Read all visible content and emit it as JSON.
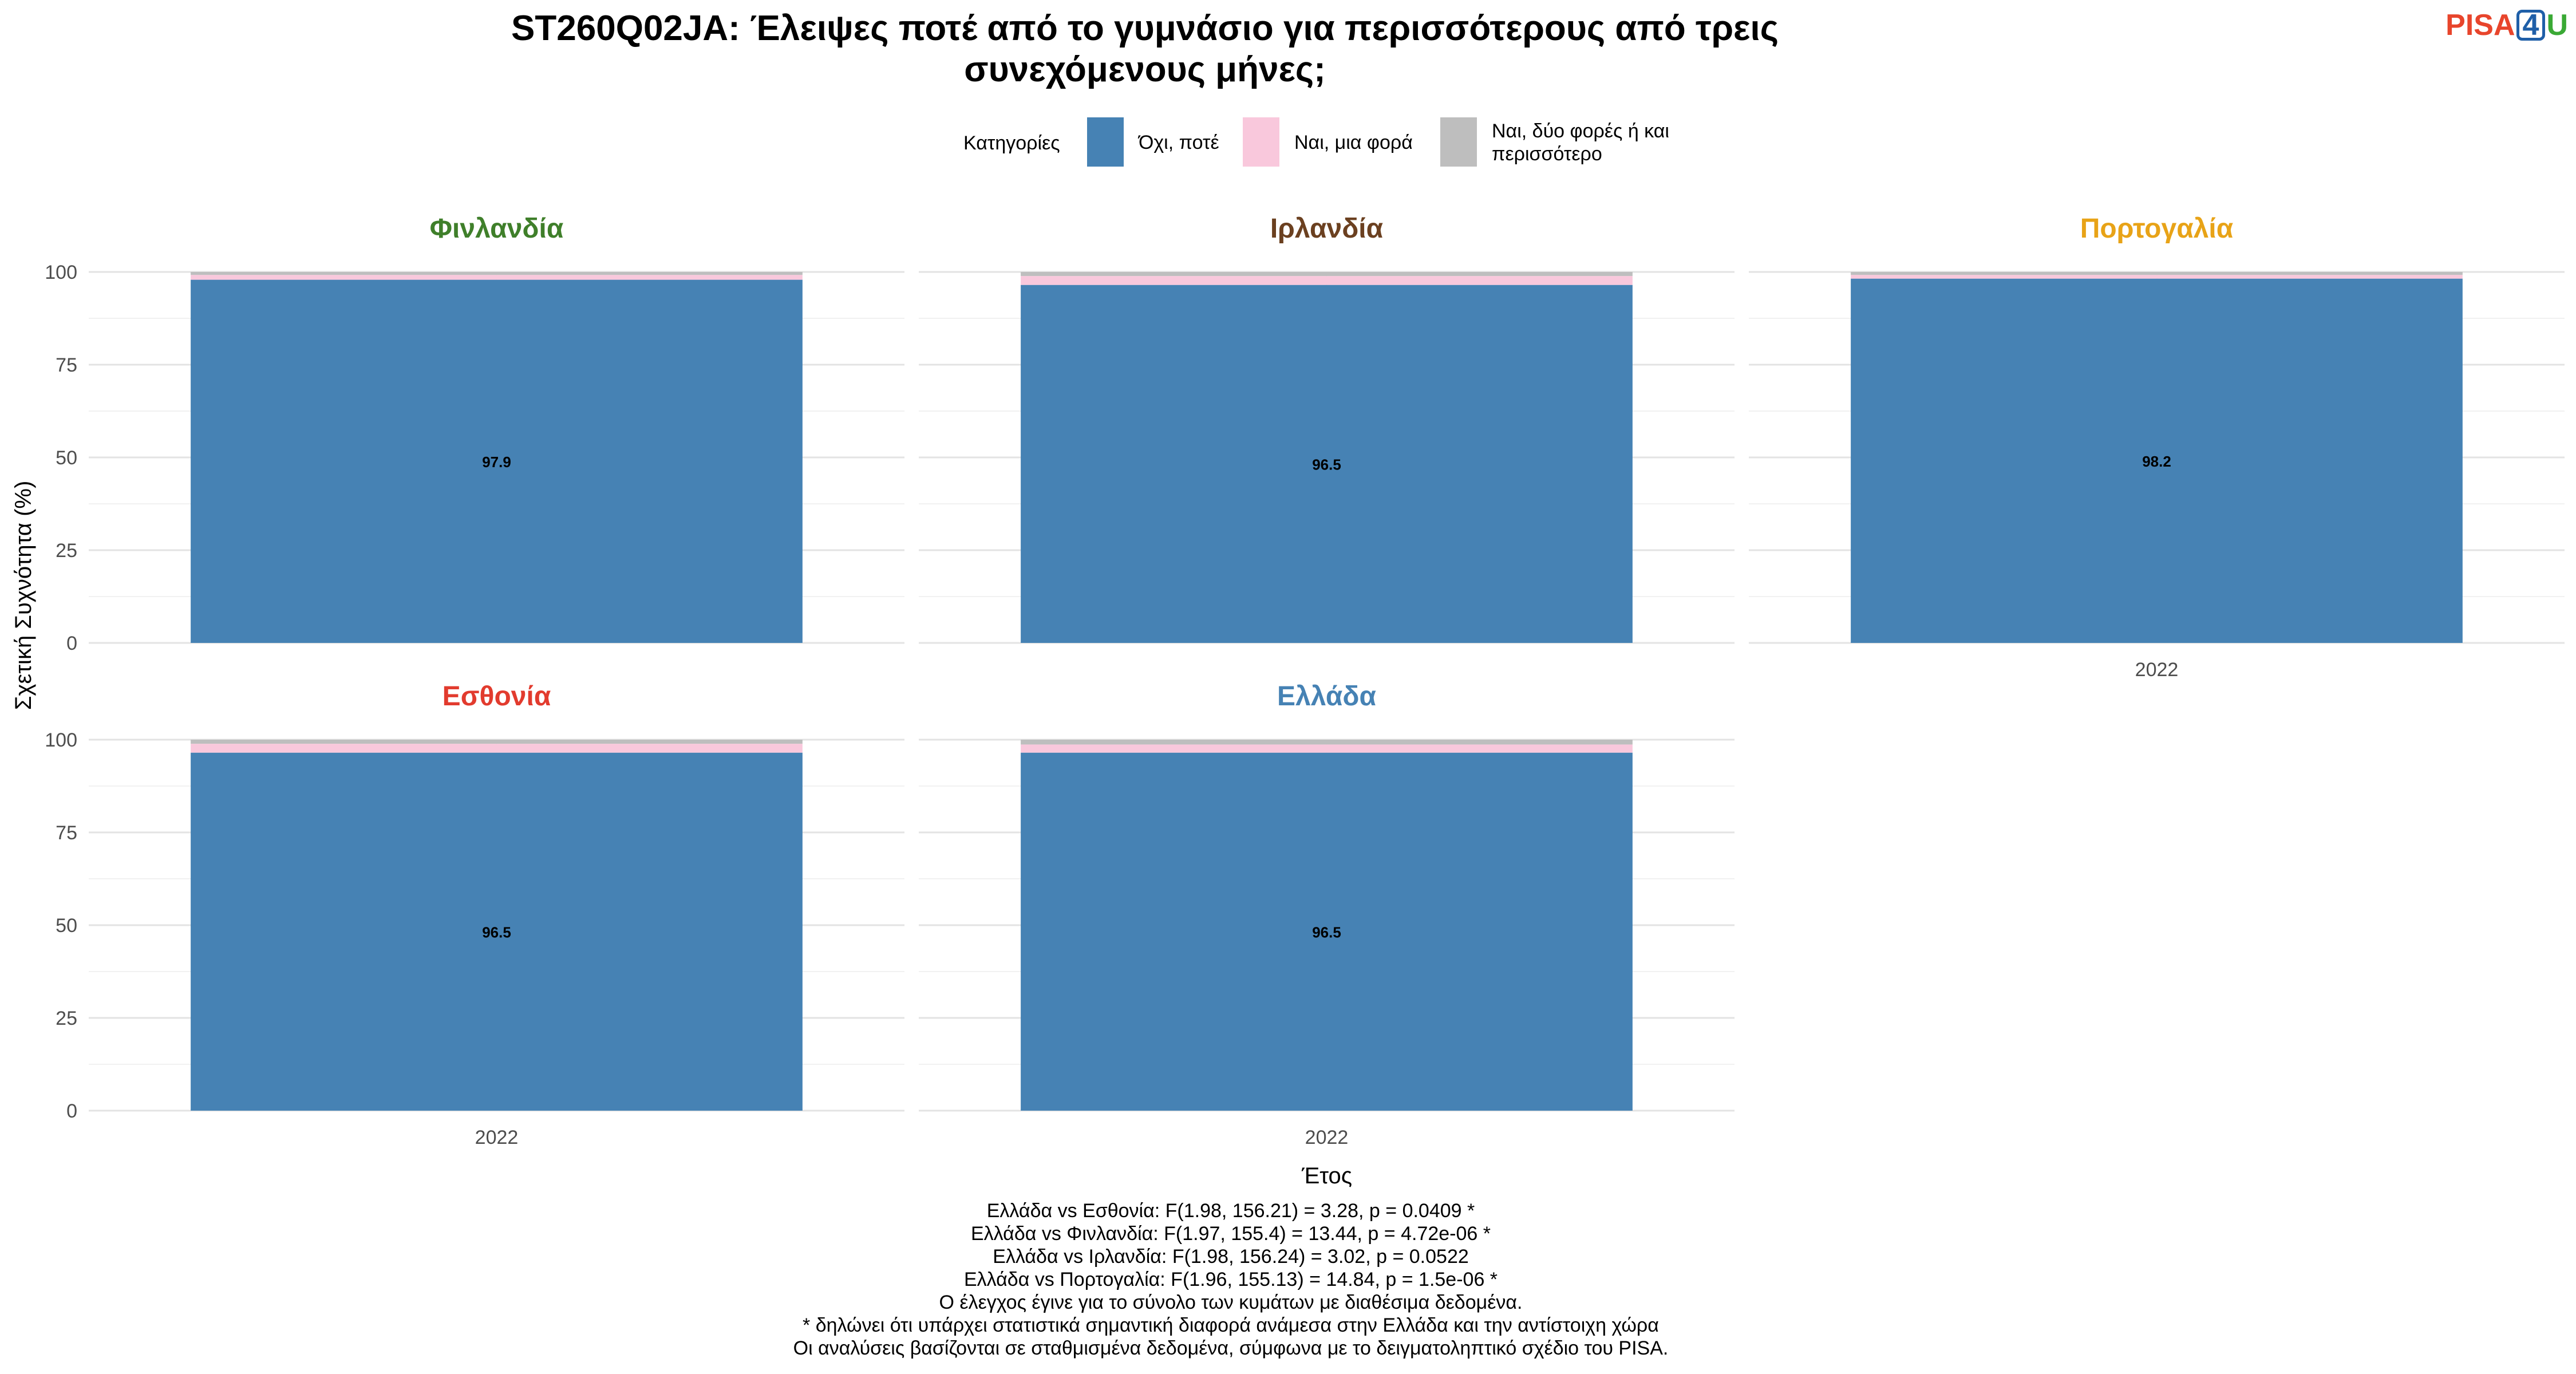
{
  "title_line1": "ST260Q02JA: Έλειψες ποτέ από το γυμνάσιο για περισσότερους από τρεις",
  "title_line2": "συνεχόμενους μήνες;",
  "logo": {
    "part1": "PISA",
    "part2": "4",
    "part3": "U"
  },
  "legend": {
    "title": "Κατηγορίες",
    "items": [
      {
        "label": "Όχι, ποτέ",
        "color": "#4682b4"
      },
      {
        "label": "Ναι, μια φορά",
        "color": "#f9c8dc"
      },
      {
        "label_line1": "Ναι, δύο φορές ή και",
        "label_line2": "περισσότερο",
        "color": "#bebebe"
      }
    ]
  },
  "chart_data": {
    "type": "bar",
    "stacked": true,
    "ylabel": "Σχετική Συχνότητα (%)",
    "xlabel": "Έτος",
    "ylim": [
      0,
      100
    ],
    "yticks": [
      0,
      25,
      50,
      75,
      100
    ],
    "grid": true,
    "legend_position": "top",
    "series_names": [
      "Όχι, ποτέ",
      "Ναι, μια φορά",
      "Ναι, δύο φορές ή και περισσότερο"
    ],
    "series_colors": [
      "#4682b4",
      "#f9c8dc",
      "#bebebe"
    ],
    "panels": [
      {
        "country": "Φινλανδία",
        "color": "#3f7f2a",
        "year": "2022",
        "values": [
          97.9,
          1.3,
          0.8
        ],
        "label": "97.9"
      },
      {
        "country": "Ιρλανδία",
        "color": "#6b4020",
        "year": "2022",
        "values": [
          96.5,
          2.4,
          1.1
        ],
        "label": "96.5"
      },
      {
        "country": "Πορτογαλία",
        "color": "#e8a317",
        "year": "2022",
        "values": [
          98.2,
          1.0,
          0.8
        ],
        "label": "98.2"
      },
      {
        "country": "Εσθονία",
        "color": "#e23b2e",
        "year": "2022",
        "values": [
          96.5,
          2.4,
          1.1
        ],
        "label": "96.5"
      },
      {
        "country": "Ελλάδα",
        "color": "#4682b4",
        "year": "2022",
        "values": [
          96.5,
          2.2,
          1.3
        ],
        "label": "96.5"
      }
    ]
  },
  "notes": [
    "Ελλάδα vs Εσθονία: F(1.98, 156.21) = 3.28, p = 0.0409 *",
    "Ελλάδα vs Φινλανδία: F(1.97, 155.4) = 13.44, p = 4.72e-06 *",
    "Ελλάδα vs Ιρλανδία: F(1.98, 156.24) = 3.02, p = 0.0522",
    "Ελλάδα vs Πορτογαλία: F(1.96, 155.13) = 14.84, p = 1.5e-06 *",
    "Ο έλεγχος έγινε για το σύνολο των κυμάτων με διαθέσιμα δεδομένα.",
    "* δηλώνει ότι υπάρχει στατιστικά σημαντική διαφορά ανάμεσα στην Ελλάδα και την αντίστοιχη χώρα",
    "Οι αναλύσεις βασίζονται σε σταθμισμένα δεδομένα, σύμφωνα με το δειγματοληπτικό σχέδιο του PISA."
  ]
}
